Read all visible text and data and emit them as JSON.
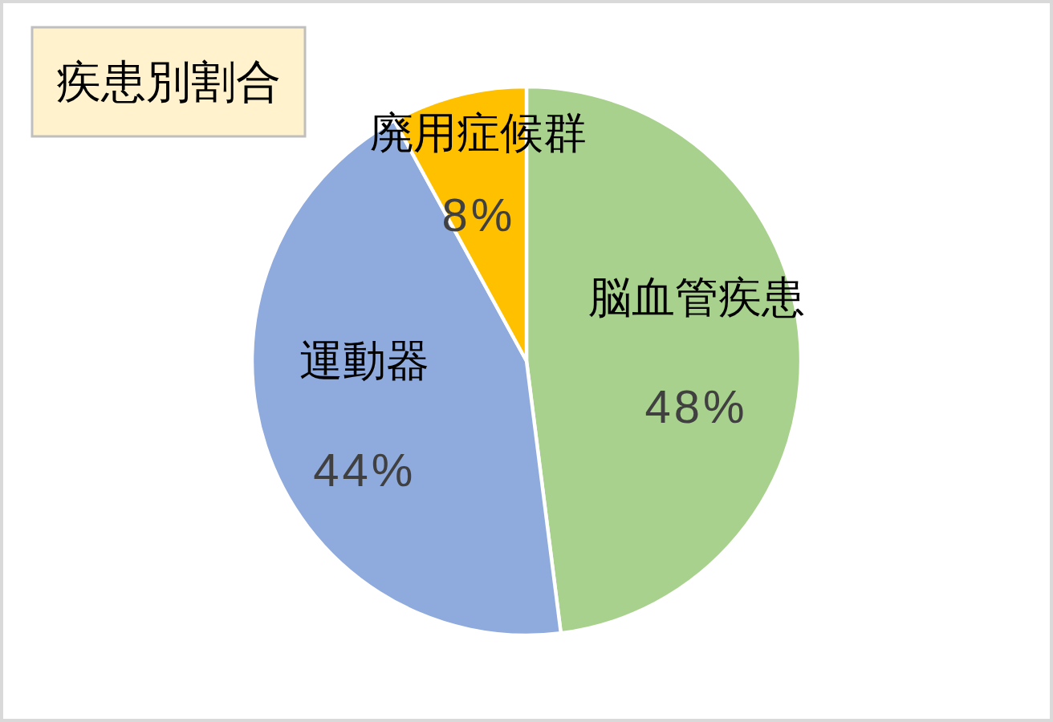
{
  "chart_data": {
    "type": "pie",
    "title": "疾患別割合",
    "categories": [
      "脳血管疾患",
      "運動器",
      "廃用症候群"
    ],
    "values": [
      48,
      44,
      8
    ],
    "colors": [
      "#a9d18e",
      "#8faadc",
      "#ffc000"
    ],
    "value_labels": [
      "48%",
      "44%",
      "8%"
    ]
  }
}
